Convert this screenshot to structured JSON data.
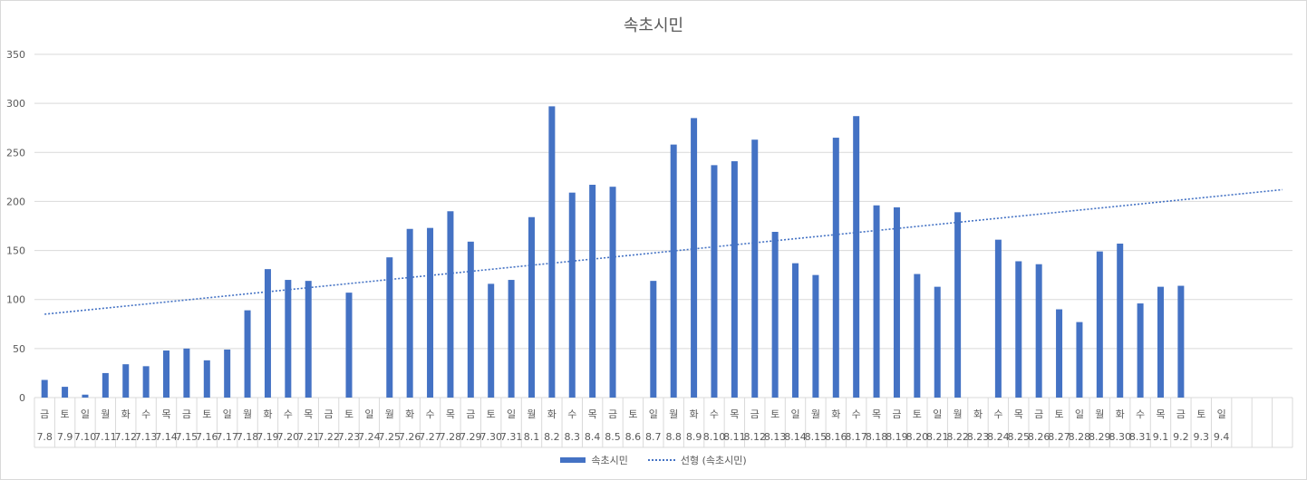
{
  "colors": {
    "bar": "#4472c4",
    "trend": "#4472c4",
    "grid": "#d9d9d9",
    "text": "#595959"
  },
  "chart_data": {
    "type": "bar",
    "title": "속초시민",
    "ylim": [
      0,
      350
    ],
    "y_ticks": [
      0,
      50,
      100,
      150,
      200,
      250,
      300,
      350
    ],
    "grid": true,
    "legend_position": "bottom",
    "categories_weekday": [
      "금",
      "토",
      "일",
      "월",
      "화",
      "수",
      "목",
      "금",
      "토",
      "일",
      "월",
      "화",
      "수",
      "목",
      "금",
      "토",
      "일",
      "월",
      "화",
      "수",
      "목",
      "금",
      "토",
      "일",
      "월",
      "화",
      "수",
      "목",
      "금",
      "토",
      "일",
      "월",
      "화",
      "수",
      "목",
      "금",
      "토",
      "일",
      "월",
      "화",
      "수",
      "목",
      "금",
      "토",
      "일",
      "월",
      "화",
      "수",
      "목",
      "금",
      "토",
      "일",
      "월",
      "화",
      "수",
      "목",
      "금",
      "토",
      "일"
    ],
    "categories_date": [
      "7.8",
      "7.9",
      "7.10",
      "7.11",
      "7.12",
      "7.13",
      "7.14",
      "7.15",
      "7.16",
      "7.17",
      "7.18",
      "7.19",
      "7.20",
      "7.21",
      "7.22",
      "7.23",
      "7.24",
      "7.25",
      "7.26",
      "7.27",
      "7.28",
      "7.29",
      "7.30",
      "7.31",
      "8.1",
      "8.2",
      "8.3",
      "8.4",
      "8.5",
      "8.6",
      "8.7",
      "8.8",
      "8.9",
      "8.10",
      "8.11",
      "8.12",
      "8.13",
      "8.14",
      "8.15",
      "8.16",
      "8.17",
      "8.18",
      "8.19",
      "8.20",
      "8.21",
      "8.22",
      "8.23",
      "8.24",
      "8.25",
      "8.26",
      "8.27",
      "8.28",
      "8.29",
      "8.30",
      "8.31",
      "9.1",
      "9.2",
      "9.3",
      "9.4"
    ],
    "total_slots": 62,
    "series": [
      {
        "name": "속초시민",
        "values": [
          18,
          11,
          3,
          25,
          34,
          32,
          48,
          50,
          38,
          49,
          89,
          131,
          120,
          119,
          null,
          107,
          null,
          143,
          172,
          173,
          190,
          159,
          116,
          120,
          184,
          297,
          209,
          217,
          215,
          null,
          119,
          258,
          285,
          237,
          241,
          263,
          169,
          137,
          125,
          265,
          287,
          196,
          194,
          126,
          113,
          189,
          null,
          161,
          139,
          136,
          90,
          77,
          149,
          157,
          96,
          113,
          114,
          null,
          null
        ]
      },
      {
        "name": "선형 (속초시민)",
        "type": "trendline",
        "start_value": 85,
        "end_value": 212
      }
    ],
    "legend": [
      "속초시민",
      "선형 (속초시민)"
    ]
  }
}
